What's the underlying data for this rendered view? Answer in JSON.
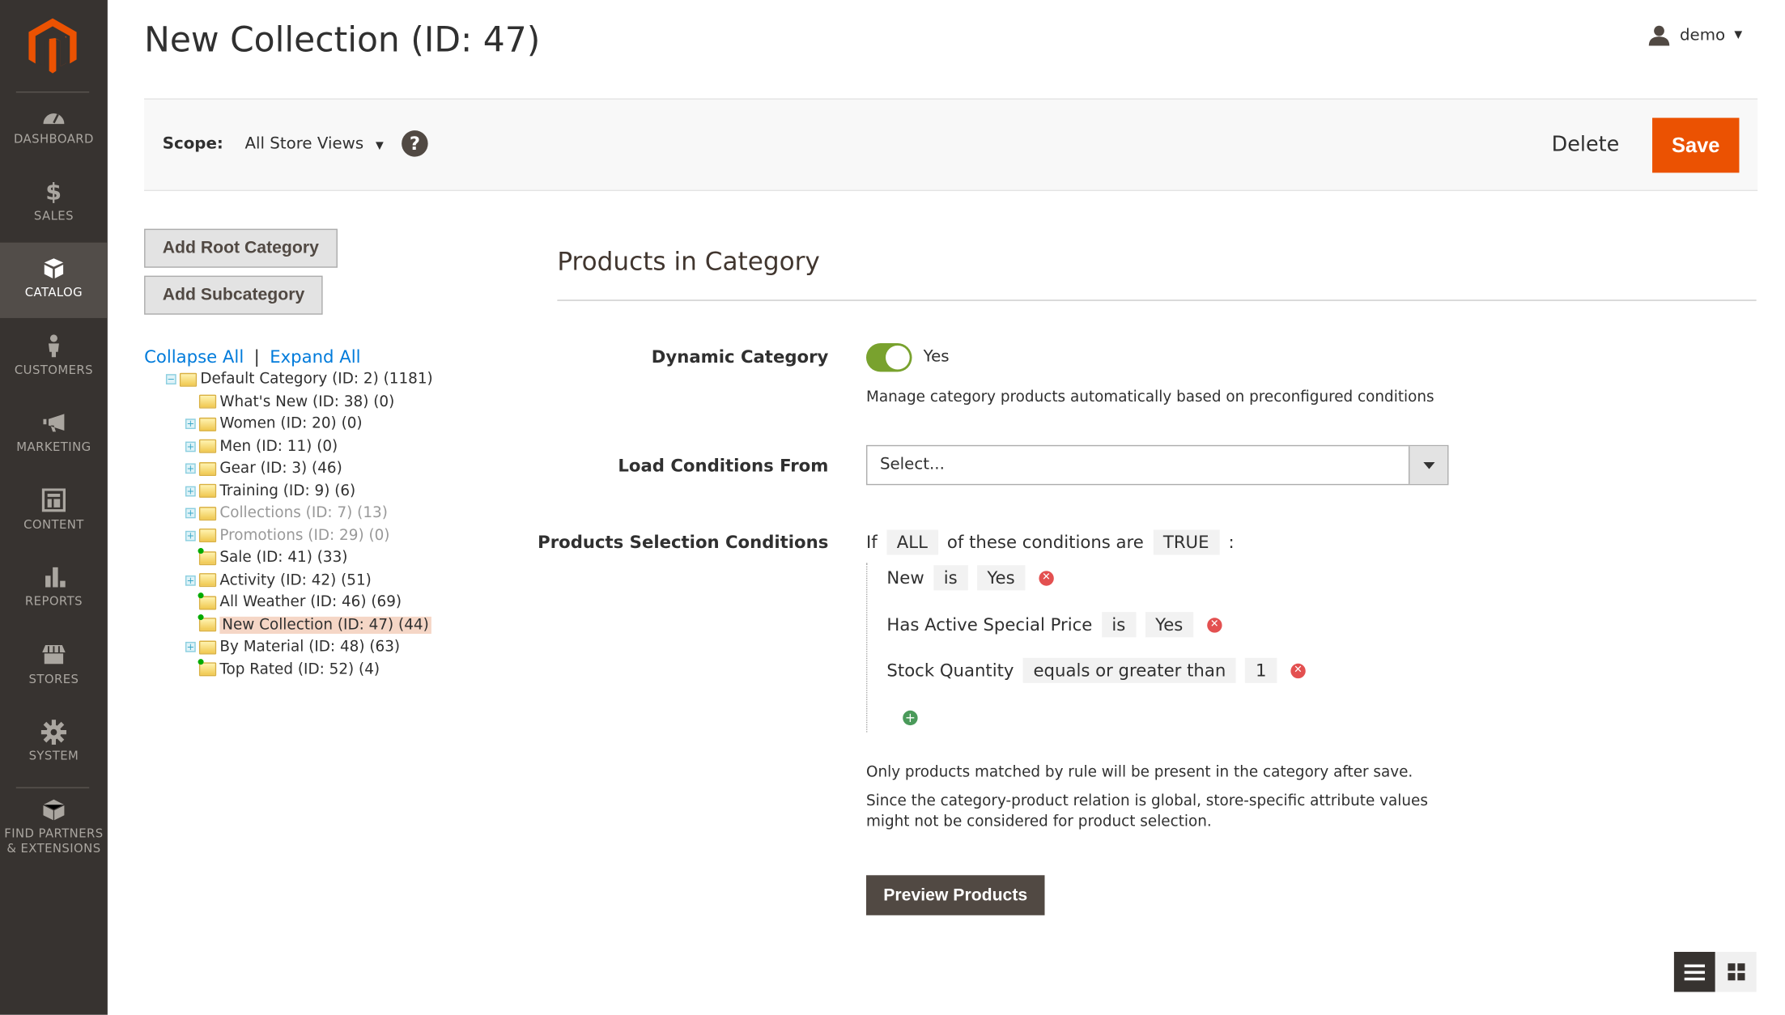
{
  "sidebar": {
    "items": [
      {
        "label": "DASHBOARD",
        "icon": "dashboard-icon"
      },
      {
        "label": "SALES",
        "icon": "dollar-icon"
      },
      {
        "label": "CATALOG",
        "icon": "box-icon",
        "active": true
      },
      {
        "label": "CUSTOMERS",
        "icon": "person-icon"
      },
      {
        "label": "MARKETING",
        "icon": "megaphone-icon"
      },
      {
        "label": "CONTENT",
        "icon": "layout-icon"
      },
      {
        "label": "REPORTS",
        "icon": "bar-chart-icon"
      },
      {
        "label": "STORES",
        "icon": "storefront-icon"
      },
      {
        "label": "SYSTEM",
        "icon": "gear-icon"
      },
      {
        "label": "FIND PARTNERS & EXTENSIONS",
        "icon": "blocks-icon"
      }
    ]
  },
  "header": {
    "title": "New Collection (ID: 47)",
    "user": "demo"
  },
  "toolbar": {
    "scope_label": "Scope:",
    "scope_value": "All Store Views",
    "help": "?",
    "delete": "Delete",
    "save": "Save"
  },
  "colors": {
    "accent": "#eb5202",
    "sidebar": "#373330",
    "toggle": "#79a22e",
    "button_dark": "#514943"
  },
  "tree": {
    "add_root": "Add Root Category",
    "add_sub": "Add Subcategory",
    "collapse": "Collapse All",
    "sep": "|",
    "expand": "Expand All",
    "nodes": [
      {
        "label": "Default Category (ID: 2) (1181)",
        "level": 0,
        "toggle": "minus"
      },
      {
        "label": "What's New (ID: 38) (0)",
        "level": 1
      },
      {
        "label": "Women (ID: 20) (0)",
        "level": 1,
        "toggle": "plus"
      },
      {
        "label": "Men (ID: 11) (0)",
        "level": 1,
        "toggle": "plus"
      },
      {
        "label": "Gear (ID: 3) (46)",
        "level": 1,
        "toggle": "plus"
      },
      {
        "label": "Training (ID: 9) (6)",
        "level": 1,
        "toggle": "plus"
      },
      {
        "label": "Collections (ID: 7) (13)",
        "level": 1,
        "toggle": "plus",
        "disabled": true
      },
      {
        "label": "Promotions (ID: 29) (0)",
        "level": 1,
        "toggle": "plus",
        "disabled": true
      },
      {
        "label": "Sale (ID: 41) (33)",
        "level": 1,
        "dynamic": true
      },
      {
        "label": "Activity (ID: 42) (51)",
        "level": 1,
        "toggle": "plus"
      },
      {
        "label": "All Weather (ID: 46) (69)",
        "level": 1,
        "dynamic": true
      },
      {
        "label": "New Collection (ID: 47) (44)",
        "level": 1,
        "dynamic": true,
        "selected": true
      },
      {
        "label": "By Material (ID: 48) (63)",
        "level": 1,
        "toggle": "plus"
      },
      {
        "label": "Top Rated (ID: 52) (4)",
        "level": 1,
        "dynamic": true
      }
    ]
  },
  "main": {
    "section_title": "Products in Category",
    "dynamic_label": "Dynamic Category",
    "dynamic_value": "Yes",
    "dynamic_on": true,
    "dynamic_note": "Manage category products automatically based on preconfigured conditions",
    "load_label": "Load Conditions From",
    "load_placeholder": "Select...",
    "cond_label": "Products Selection Conditions",
    "cond_if": "If",
    "cond_agg": "ALL",
    "cond_mid": "of these conditions are",
    "cond_val": "TRUE",
    "cond_colon": ":",
    "conditions": [
      {
        "attr": "New",
        "op": "is",
        "value": "Yes"
      },
      {
        "attr": "Has Active Special Price",
        "op": "is",
        "value": "Yes"
      },
      {
        "attr": "Stock Quantity",
        "op": "equals or greater than",
        "value": "1"
      }
    ],
    "note1": "Only products matched by rule will be present in the category after save.",
    "note2": "Since the category-product relation is global, store-specific attribute values might not be considered for product selection.",
    "preview": "Preview Products"
  },
  "view": {
    "list": "list-view-icon",
    "grid": "grid-view-icon",
    "active": "list"
  }
}
